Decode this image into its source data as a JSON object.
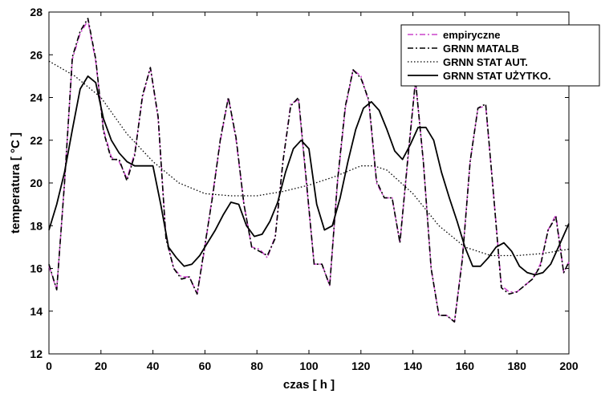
{
  "chart_data": {
    "type": "line",
    "xlabel": "czas [ h ]",
    "ylabel": "temperatura [ °C ]",
    "xlim": [
      0,
      200
    ],
    "ylim": [
      12,
      28
    ],
    "xticks": [
      0,
      20,
      40,
      60,
      80,
      100,
      120,
      140,
      160,
      180,
      200
    ],
    "yticks": [
      12,
      14,
      16,
      18,
      20,
      22,
      24,
      26,
      28
    ],
    "grid": false,
    "legend_position": "top-right",
    "series": [
      {
        "name": "empiryczne",
        "color": "#cc44cc",
        "style": "dash-dot",
        "x": [
          0,
          3,
          6,
          9,
          12,
          15,
          18,
          21,
          24,
          27,
          30,
          33,
          36,
          39,
          42,
          45,
          48,
          51,
          54,
          57,
          60,
          63,
          66,
          69,
          72,
          75,
          78,
          81,
          84,
          87,
          90,
          93,
          96,
          99,
          102,
          105,
          108,
          111,
          114,
          117,
          120,
          123,
          126,
          129,
          132,
          135,
          138,
          141,
          144,
          147,
          150,
          153,
          156,
          159,
          162,
          165,
          168,
          171,
          174,
          177,
          180,
          183,
          186,
          189,
          192,
          195,
          198,
          200
        ],
        "y": [
          16.1,
          15.0,
          20.0,
          25.8,
          27.0,
          27.6,
          25.7,
          22.5,
          21.2,
          21.0,
          20.2,
          21.4,
          24.0,
          25.4,
          23.0,
          17.5,
          16.0,
          15.6,
          15.6,
          14.8,
          17.0,
          19.5,
          22.0,
          24.0,
          22.0,
          19.0,
          17.0,
          16.9,
          16.5,
          17.5,
          21.0,
          23.7,
          23.9,
          20.0,
          16.2,
          16.2,
          15.2,
          20.0,
          23.5,
          25.3,
          25.0,
          23.8,
          20.0,
          19.3,
          19.3,
          17.2,
          21.0,
          24.8,
          21.0,
          16.0,
          13.8,
          13.8,
          13.5,
          16.5,
          21.0,
          23.5,
          23.6,
          19.5,
          15.2,
          14.9,
          14.9,
          15.2,
          15.5,
          16.2,
          17.8,
          18.5,
          15.8,
          16.3
        ],
        "_note_ignore": ""
      },
      {
        "name": "GRNN MATALB",
        "color": "#000000",
        "style": "dash-dot",
        "x": [
          0,
          3,
          6,
          9,
          12,
          15,
          18,
          21,
          24,
          27,
          30,
          33,
          36,
          39,
          42,
          45,
          48,
          51,
          54,
          57,
          60,
          63,
          66,
          69,
          72,
          75,
          78,
          81,
          84,
          87,
          90,
          93,
          96,
          99,
          102,
          105,
          108,
          111,
          114,
          117,
          120,
          123,
          126,
          129,
          132,
          135,
          138,
          141,
          144,
          147,
          150,
          153,
          156,
          159,
          162,
          165,
          168,
          171,
          174,
          177,
          180,
          183,
          186,
          189,
          192,
          195,
          198,
          200
        ],
        "y": [
          16.2,
          15.0,
          20.0,
          25.9,
          27.1,
          27.7,
          25.8,
          22.4,
          21.1,
          21.1,
          20.1,
          21.3,
          24.1,
          25.4,
          23.1,
          17.4,
          16.0,
          15.5,
          15.6,
          14.8,
          17.1,
          19.4,
          22.1,
          24.0,
          22.1,
          19.0,
          17.0,
          16.8,
          16.6,
          17.4,
          21.0,
          23.6,
          24.0,
          20.1,
          16.2,
          16.2,
          15.2,
          20.1,
          23.6,
          25.3,
          24.9,
          23.9,
          20.1,
          19.3,
          19.3,
          17.2,
          21.1,
          24.8,
          21.0,
          16.0,
          13.8,
          13.8,
          13.5,
          16.4,
          21.0,
          23.5,
          23.7,
          19.5,
          15.1,
          14.8,
          14.9,
          15.2,
          15.5,
          16.1,
          17.8,
          18.4,
          15.8,
          16.3
        ]
      },
      {
        "name": "GRNN STAT AUT.",
        "color": "#000000",
        "style": "dotted",
        "x": [
          0,
          10,
          20,
          30,
          40,
          50,
          60,
          70,
          80,
          90,
          100,
          110,
          120,
          125,
          130,
          140,
          150,
          160,
          170,
          180,
          190,
          200
        ],
        "y": [
          25.7,
          25.0,
          24.0,
          22.3,
          21.0,
          20.0,
          19.5,
          19.4,
          19.4,
          19.6,
          19.9,
          20.3,
          20.8,
          20.8,
          20.6,
          19.5,
          18.0,
          17.0,
          16.6,
          16.6,
          16.7,
          16.9
        ]
      },
      {
        "name": "GRNN STAT UŻYTKO.",
        "color": "#000000",
        "style": "solid",
        "x": [
          0,
          3,
          6,
          9,
          12,
          15,
          18,
          21,
          24,
          27,
          30,
          33,
          36,
          40,
          43,
          46,
          49,
          52,
          55,
          58,
          61,
          64,
          67,
          70,
          73,
          76,
          79,
          82,
          85,
          88,
          91,
          94,
          97,
          100,
          103,
          106,
          109,
          112,
          115,
          118,
          121,
          124,
          127,
          130,
          133,
          136,
          139,
          142,
          145,
          148,
          151,
          154,
          157,
          160,
          163,
          166,
          169,
          172,
          175,
          178,
          181,
          184,
          187,
          190,
          193,
          196,
          200
        ],
        "y": [
          17.8,
          19.0,
          20.5,
          22.5,
          24.4,
          25.0,
          24.7,
          23.0,
          22.0,
          21.4,
          21.0,
          20.8,
          20.8,
          20.8,
          19.0,
          17.0,
          16.5,
          16.1,
          16.2,
          16.6,
          17.2,
          17.8,
          18.5,
          19.1,
          19.0,
          18.0,
          17.5,
          17.6,
          18.2,
          19.1,
          20.5,
          21.6,
          22.0,
          21.6,
          19.0,
          17.8,
          18.0,
          19.3,
          21.0,
          22.5,
          23.5,
          23.8,
          23.4,
          22.5,
          21.5,
          21.1,
          21.8,
          22.6,
          22.6,
          22.0,
          20.5,
          19.3,
          18.2,
          17.0,
          16.1,
          16.1,
          16.5,
          17.0,
          17.2,
          16.8,
          16.1,
          15.8,
          15.7,
          15.8,
          16.2,
          17.0,
          18.1
        ]
      }
    ]
  }
}
